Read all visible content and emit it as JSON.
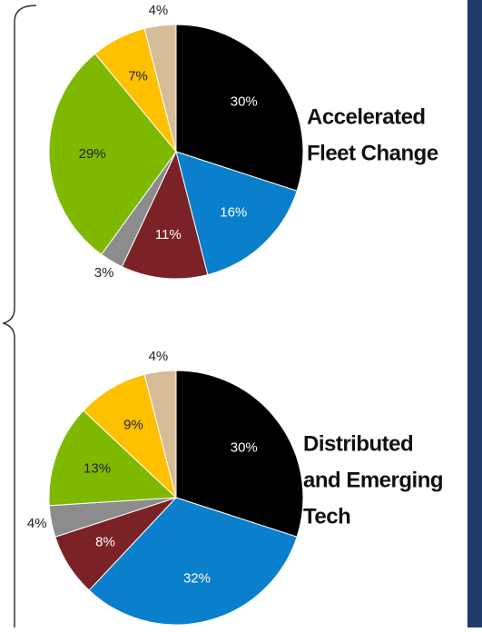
{
  "chart_data": [
    {
      "type": "pie",
      "title": [
        "Accelerated",
        "Fleet Change"
      ],
      "values": [
        30,
        16,
        11,
        3,
        29,
        7,
        4
      ],
      "value_labels": [
        "30%",
        "16%",
        "11%",
        "3%",
        "29%",
        "7%",
        "4%"
      ],
      "colors": [
        "#000000",
        "#0a7fcb",
        "#7b2226",
        "#8c8c8c",
        "#7fb800",
        "#ffc000",
        "#d6bc96"
      ]
    },
    {
      "type": "pie",
      "title": [
        "Distributed",
        "and Emerging",
        "Tech"
      ],
      "values": [
        30,
        32,
        8,
        4,
        13,
        9,
        4
      ],
      "value_labels": [
        "30%",
        "32%",
        "8%",
        "4%",
        "13%",
        "9%",
        "4%"
      ],
      "colors": [
        "#000000",
        "#0a7fcb",
        "#7b2226",
        "#8c8c8c",
        "#7fb800",
        "#ffc000",
        "#d6bc96"
      ]
    }
  ]
}
